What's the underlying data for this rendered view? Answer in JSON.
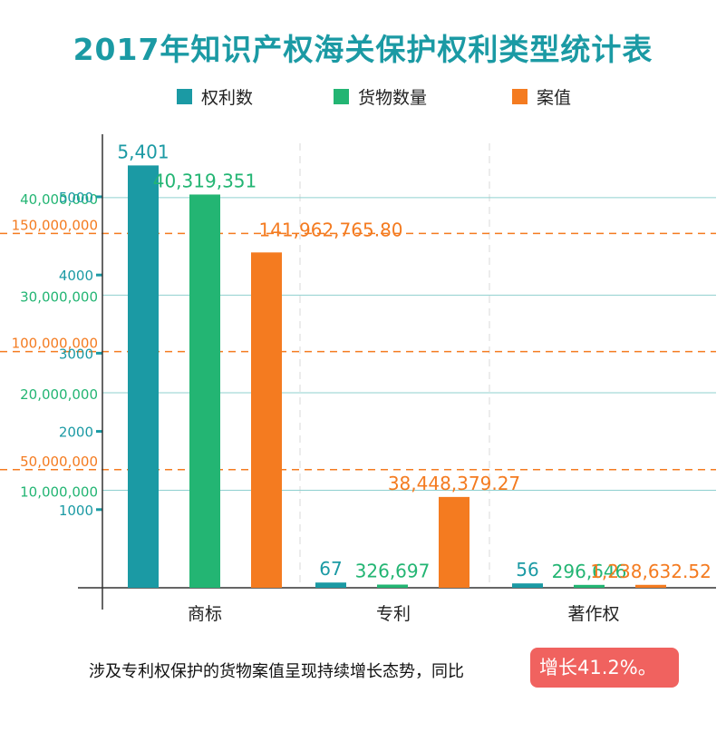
{
  "title": "2017年知识产权海关保护权利类型统计表",
  "legend": [
    {
      "label": "权利数",
      "color": "#1b9aa4"
    },
    {
      "label": "货物数量",
      "color": "#23b573"
    },
    {
      "label": "案值",
      "color": "#f47b20"
    }
  ],
  "footer": {
    "text": "涉及专利权保护的货物案值呈现持续增长态势，同比",
    "badge": "增长41.2%。"
  },
  "chart_data": {
    "type": "bar",
    "categories": [
      "商标",
      "专利",
      "著作权"
    ],
    "series": [
      {
        "name": "权利数",
        "color": "#1b9aa4",
        "values": [
          5401,
          67,
          56
        ],
        "labels": [
          "5,401",
          "67",
          "56"
        ],
        "axis": {
          "ticks": [
            1000,
            2000,
            3000,
            4000,
            5000
          ],
          "tick_labels": [
            "1000",
            "2000",
            "3000",
            "4000",
            "5000"
          ],
          "ylim": [
            0,
            5800
          ]
        }
      },
      {
        "name": "货物数量",
        "color": "#23b573",
        "values": [
          40319351,
          326697,
          296646
        ],
        "labels": [
          "40,319,351",
          "326,697",
          "296,646"
        ],
        "axis": {
          "ticks": [
            10000000,
            20000000,
            30000000,
            40000000
          ],
          "tick_labels": [
            "10,000,000",
            "20,000,000",
            "30,000,000",
            "40,000,000"
          ],
          "ylim": [
            0,
            46500000
          ]
        }
      },
      {
        "name": "案值",
        "color": "#f47b20",
        "values": [
          141962765.8,
          38448379.27,
          1238632.52
        ],
        "labels": [
          "141,962,765.80",
          "38,448,379.27",
          "1,238,632.52"
        ],
        "axis": {
          "ticks": [
            50000000,
            100000000,
            150000000
          ],
          "tick_labels": [
            "50,000,000",
            "100,000,000",
            "150,000,000"
          ],
          "ylim": [
            0,
            192000000
          ]
        }
      }
    ],
    "grid": true
  }
}
